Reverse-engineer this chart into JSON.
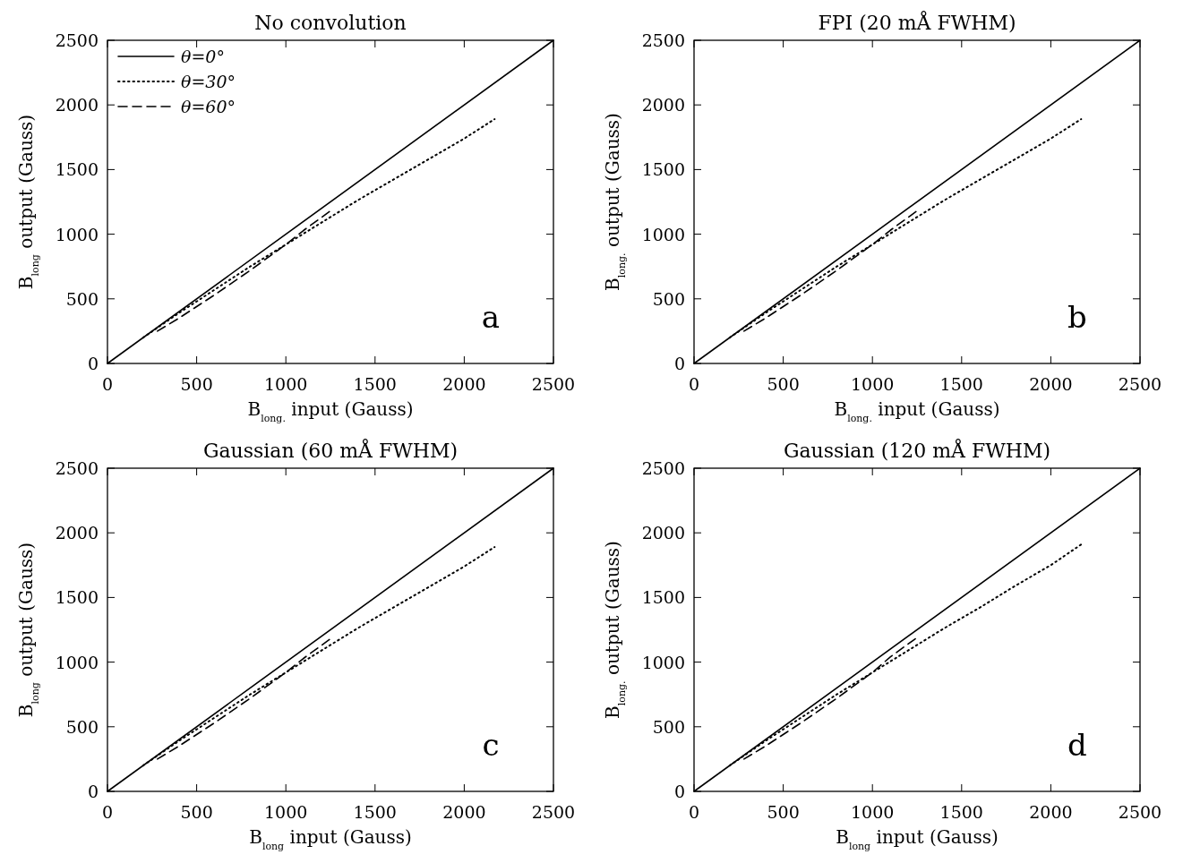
{
  "chart_data": [
    {
      "type": "line",
      "title": "No convolution",
      "xlabel": "B$_{long.}$ input (Gauss)",
      "ylabel": "B$_{long}$ output (Gauss)",
      "xlim": [
        0,
        2500
      ],
      "ylim": [
        0,
        2500
      ],
      "xticks": [
        0,
        500,
        1000,
        1500,
        2000,
        2500
      ],
      "yticks": [
        0,
        500,
        1000,
        1500,
        2000,
        2500
      ],
      "legend": "top left",
      "annotations": [
        "a"
      ],
      "series": [
        {
          "name": "θ=0°",
          "color": "#000000",
          "line_style": "solid",
          "x": [
            0,
            2500
          ],
          "values": [
            0,
            2500
          ]
        },
        {
          "name": "θ=30°",
          "color": "#000000",
          "line_style": "dotted",
          "x": [
            200,
            400,
            600,
            800,
            1000,
            1200,
            1400,
            1600,
            1800,
            2000,
            2170
          ],
          "values": [
            200,
            390,
            570,
            750,
            920,
            1090,
            1260,
            1420,
            1580,
            1740,
            1890
          ]
        },
        {
          "name": "θ=60°",
          "color": "#000000",
          "line_style": "dashed",
          "x": [
            280,
            400,
            600,
            800,
            1000,
            1100,
            1250
          ],
          "values": [
            250,
            350,
            530,
            720,
            920,
            1030,
            1180
          ]
        }
      ]
    },
    {
      "type": "line",
      "title": "FPI (20 mÅ FWHM)",
      "xlabel": "B$_{long.}$ input (Gauss)",
      "ylabel": "B$_{long.}$ output (Gauss)",
      "xlim": [
        0,
        2500
      ],
      "ylim": [
        0,
        2500
      ],
      "xticks": [
        0,
        500,
        1000,
        1500,
        2000,
        2500
      ],
      "yticks": [
        0,
        500,
        1000,
        1500,
        2000,
        2500
      ],
      "annotations": [
        "b"
      ],
      "series": [
        {
          "color": "#000000",
          "line_style": "solid",
          "x": [
            0,
            2500
          ],
          "values": [
            0,
            2500
          ]
        },
        {
          "color": "#000000",
          "line_style": "dotted",
          "x": [
            200,
            400,
            600,
            800,
            1000,
            1200,
            1400,
            1600,
            1800,
            2000,
            2170
          ],
          "values": [
            200,
            390,
            570,
            750,
            920,
            1090,
            1260,
            1420,
            1580,
            1740,
            1890
          ]
        },
        {
          "color": "#000000",
          "line_style": "dashed",
          "x": [
            280,
            400,
            600,
            800,
            1000,
            1100,
            1250
          ],
          "values": [
            250,
            350,
            530,
            720,
            920,
            1030,
            1180
          ]
        }
      ]
    },
    {
      "type": "line",
      "title": "Gaussian (60 mÅ FWHM)",
      "xlabel": "B$_{long}$ input (Gauss)",
      "ylabel": "B$_{long}$ output (Gauss)",
      "xlim": [
        0,
        2500
      ],
      "ylim": [
        0,
        2500
      ],
      "xticks": [
        0,
        500,
        1000,
        1500,
        2000,
        2500
      ],
      "yticks": [
        0,
        500,
        1000,
        1500,
        2000,
        2500
      ],
      "annotations": [
        "c"
      ],
      "series": [
        {
          "color": "#000000",
          "line_style": "solid",
          "x": [
            0,
            2500
          ],
          "values": [
            0,
            2500
          ]
        },
        {
          "color": "#000000",
          "line_style": "dotted",
          "x": [
            200,
            400,
            600,
            800,
            1000,
            1200,
            1400,
            1600,
            1800,
            2000,
            2170
          ],
          "values": [
            200,
            390,
            570,
            750,
            920,
            1090,
            1260,
            1420,
            1580,
            1740,
            1890
          ]
        },
        {
          "color": "#000000",
          "line_style": "dashed",
          "x": [
            280,
            400,
            600,
            800,
            1000,
            1100,
            1250
          ],
          "values": [
            250,
            350,
            530,
            720,
            920,
            1030,
            1180
          ]
        }
      ]
    },
    {
      "type": "line",
      "title": "Gaussian (120 mÅ FWHM)",
      "xlabel": "B$_{long}$ input (Gauss)",
      "ylabel": "B$_{long.}$ output (Gauss)",
      "xlim": [
        0,
        2500
      ],
      "ylim": [
        0,
        2500
      ],
      "xticks": [
        0,
        500,
        1000,
        1500,
        2000,
        2500
      ],
      "yticks": [
        0,
        500,
        1000,
        1500,
        2000,
        2500
      ],
      "annotations": [
        "d"
      ],
      "series": [
        {
          "color": "#000000",
          "line_style": "solid",
          "x": [
            0,
            2500
          ],
          "values": [
            0,
            2500
          ]
        },
        {
          "color": "#000000",
          "line_style": "dotted",
          "x": [
            200,
            400,
            600,
            800,
            1000,
            1200,
            1400,
            1600,
            1800,
            2000,
            2170
          ],
          "values": [
            200,
            390,
            570,
            750,
            920,
            1090,
            1260,
            1420,
            1590,
            1750,
            1910
          ]
        },
        {
          "color": "#000000",
          "line_style": "dashed",
          "x": [
            280,
            400,
            600,
            800,
            1000,
            1100,
            1250
          ],
          "values": [
            250,
            350,
            530,
            720,
            920,
            1040,
            1190
          ]
        }
      ]
    }
  ]
}
